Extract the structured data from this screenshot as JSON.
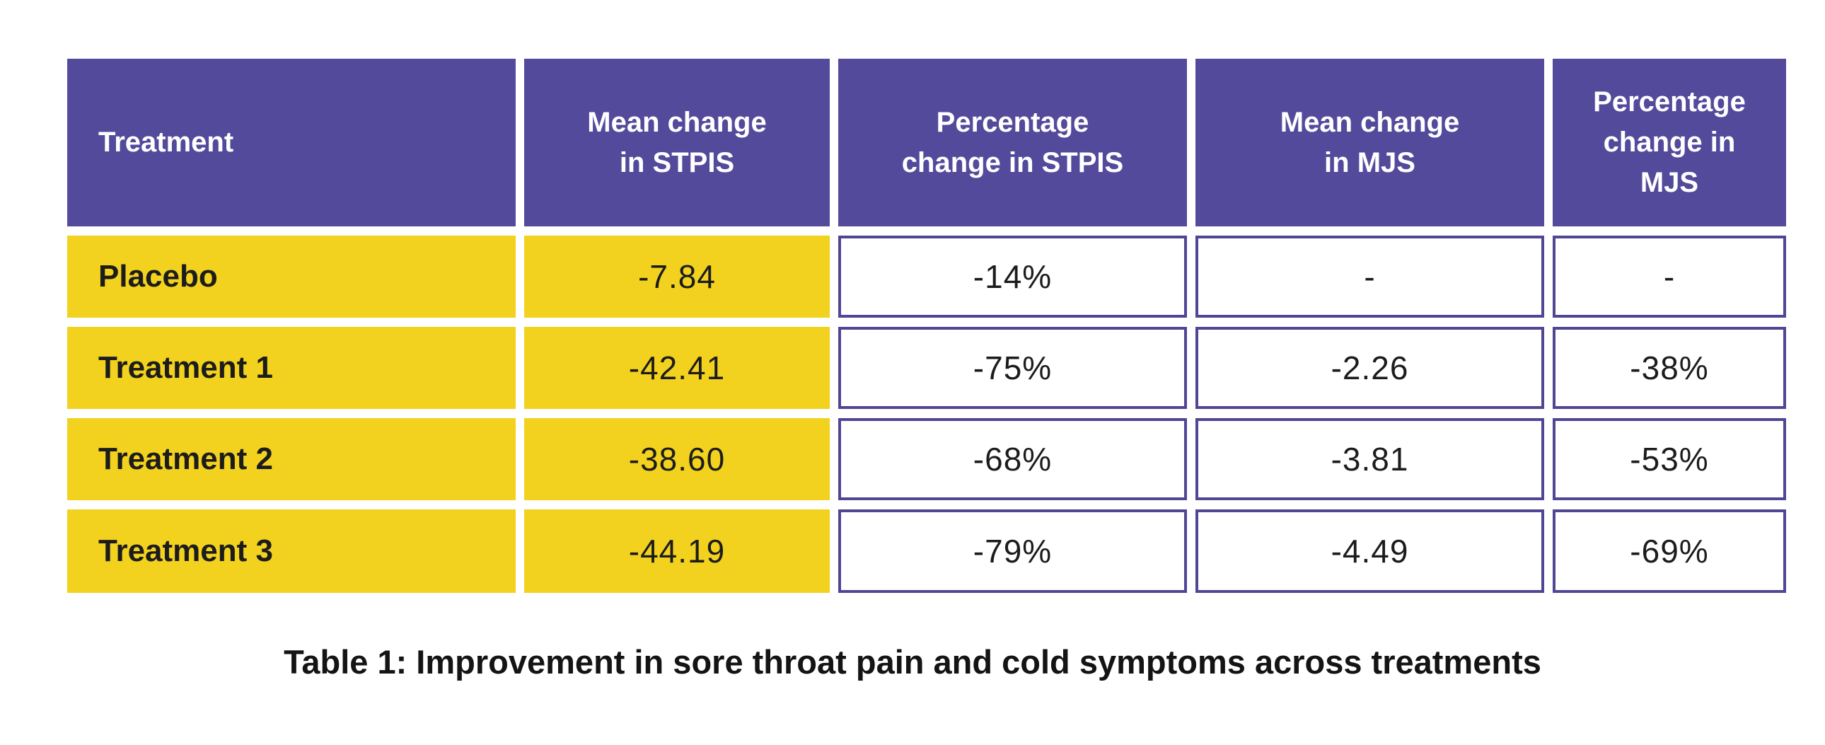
{
  "colors": {
    "purple": "#544A9C",
    "yellow": "#F2D21E",
    "cell_border": "#4F4694",
    "text_dark": "#1C1C1C",
    "header_text": "#FFFFFF",
    "background": "#FFFFFF"
  },
  "table": {
    "headers": [
      "Treatment",
      "Mean change\nin STPIS",
      "Percentage\nchange in STPIS",
      "Mean change\nin MJS",
      "Percentage\nchange in\nMJS"
    ],
    "rows": [
      {
        "label": "Placebo",
        "mean_stpis": "-7.84",
        "pct_stpis": "-14%",
        "mean_mjs": "-",
        "pct_mjs": "-"
      },
      {
        "label": "Treatment 1",
        "mean_stpis": "-42.41",
        "pct_stpis": "-75%",
        "mean_mjs": "-2.26",
        "pct_mjs": "-38%"
      },
      {
        "label": "Treatment 2",
        "mean_stpis": "-38.60",
        "pct_stpis": "-68%",
        "mean_mjs": "-3.81",
        "pct_mjs": "-53%"
      },
      {
        "label": "Treatment 3",
        "mean_stpis": "-44.19",
        "pct_stpis": "-79%",
        "mean_mjs": "-4.49",
        "pct_mjs": "-69%"
      }
    ]
  },
  "caption": "Table 1: Improvement in sore throat pain and cold symptoms across treatments",
  "chart_data": {
    "type": "table",
    "title": "Table 1: Improvement in sore throat pain and cold symptoms across treatments",
    "columns": [
      "Treatment",
      "Mean change in STPIS",
      "Percentage change in STPIS",
      "Mean change in MJS",
      "Percentage change in MJS"
    ],
    "rows": [
      [
        "Placebo",
        -7.84,
        "-14%",
        null,
        null
      ],
      [
        "Treatment 1",
        -42.41,
        "-75%",
        -2.26,
        "-38%"
      ],
      [
        "Treatment 2",
        -38.6,
        "-68%",
        -3.81,
        "-53%"
      ],
      [
        "Treatment 3",
        -44.19,
        "-79%",
        -4.49,
        "-69%"
      ]
    ]
  }
}
